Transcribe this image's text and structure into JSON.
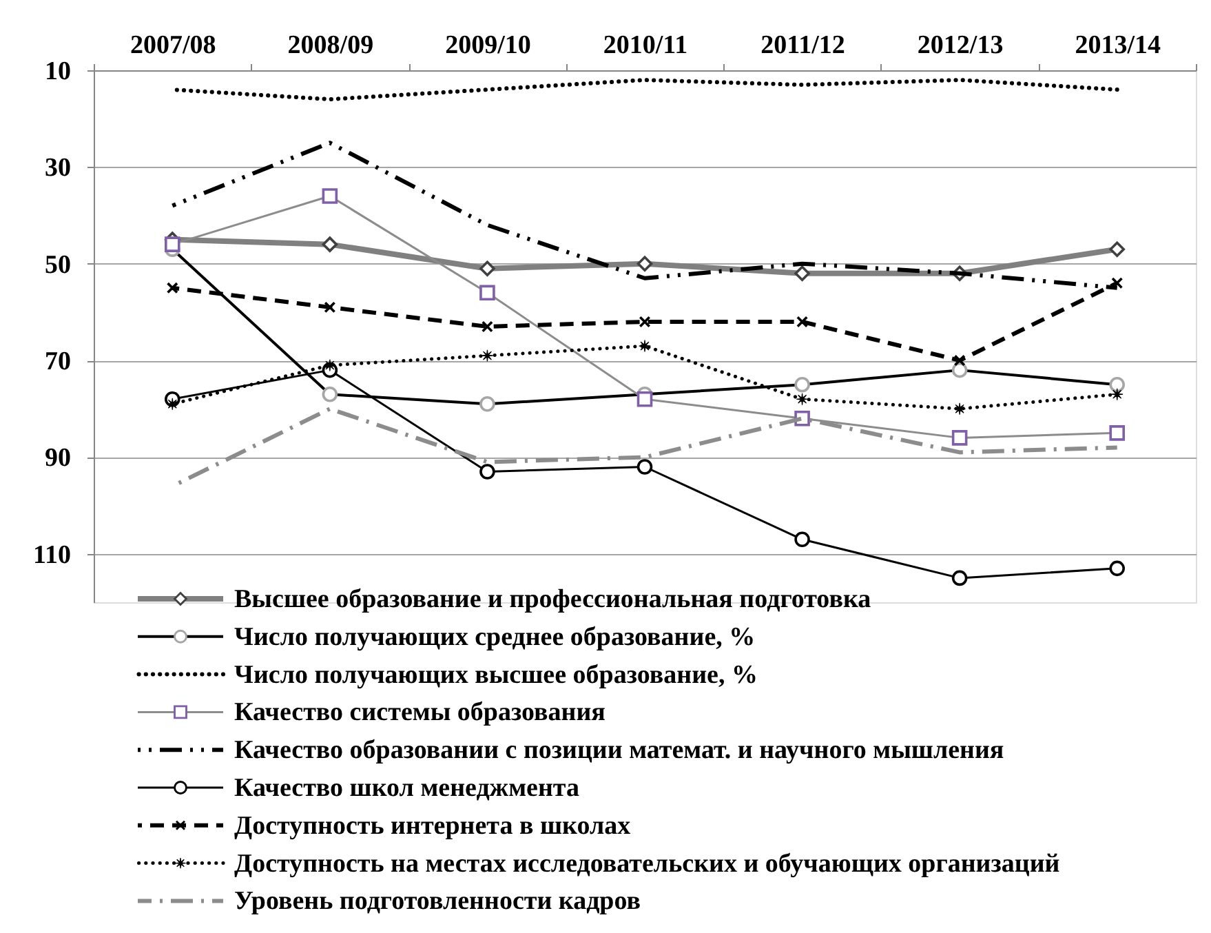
{
  "chart_data": {
    "type": "line",
    "categories": [
      "2007/08",
      "2008/09",
      "2009/10",
      "2010/11",
      "2011/12",
      "2012/13",
      "2013/14"
    ],
    "ylim": [
      120,
      10
    ],
    "yticks": [
      10,
      30,
      50,
      70,
      90,
      110
    ],
    "grid": "y",
    "legend": "bottom",
    "series": [
      {
        "name": "Высшее образование и профессиональная подготовка",
        "color": "#808080",
        "colors": [
          "#404040",
          "#404040",
          "#404040",
          "#404040",
          "#404040",
          "#404040",
          "#404040"
        ],
        "marker": "diamond",
        "line_style": "solid",
        "values": [
          45,
          46,
          51,
          50,
          52,
          52,
          47
        ]
      },
      {
        "name": "Число получающих среднее образование, %",
        "color": "#000000",
        "colors": [
          "#a6a6a6",
          "#a6a6a6",
          "#a6a6a6",
          "#a6a6a6",
          "#a6a6a6",
          "#a6a6a6",
          "#a6a6a6"
        ],
        "marker": "circle",
        "line_style": "solid",
        "values": [
          47,
          77,
          79,
          77,
          75,
          72,
          75
        ]
      },
      {
        "name": "Число получающих высшее образование, %",
        "color": "#000000",
        "marker": "none",
        "line_style": "dotted",
        "values": [
          14,
          16,
          14,
          12,
          13,
          12,
          14
        ]
      },
      {
        "name": "Качество системы образования",
        "color": "#8c8c8c",
        "colors": [
          "#7f60a8",
          "#7f60a8",
          "#7f60a8",
          "#7f60a8",
          "#7f60a8",
          "#7f60a8",
          "#7f60a8"
        ],
        "marker": "square",
        "line_style": "solid",
        "values": [
          46,
          36,
          56,
          78,
          82,
          86,
          85
        ]
      },
      {
        "name": "Качество образовании с позиции математ. и научного мышления",
        "color": "#000000",
        "marker": "none",
        "line_style": "dashed",
        "values": [
          38,
          25,
          42,
          53,
          50,
          52,
          55
        ]
      },
      {
        "name": "Качество школ менеджмента",
        "color": "#000000",
        "marker": "circle",
        "line_style": "solid",
        "values": [
          78,
          72,
          93,
          92,
          107,
          115,
          113
        ]
      },
      {
        "name": "Доступность интернета в школах",
        "color": "#000000",
        "marker": "cross",
        "line_style": "dashed",
        "values": [
          55,
          59,
          63,
          62,
          62,
          70,
          54
        ]
      },
      {
        "name": "Доступность на местах исследовательских и обучающих организаций",
        "color": "#000000",
        "marker": "star",
        "line_style": "dotted",
        "values": [
          79,
          71,
          69,
          67,
          78,
          80,
          77
        ]
      },
      {
        "name": "Уровень подготовленности кадров",
        "color": "#8c8c8c",
        "marker": "none",
        "line_style": "dashed",
        "values": [
          96,
          80,
          91,
          90,
          82,
          89,
          88
        ]
      }
    ]
  }
}
